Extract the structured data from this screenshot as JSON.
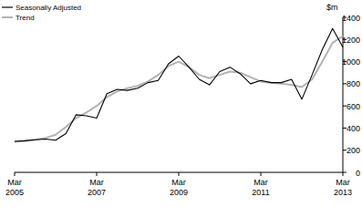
{
  "chart_data": {
    "type": "line",
    "y_label": "$m",
    "categories": [
      "Mar 2005",
      null,
      null,
      null,
      null,
      null,
      null,
      null,
      "Mar 2007",
      null,
      null,
      null,
      null,
      null,
      null,
      null,
      "Mar 2009",
      null,
      null,
      null,
      null,
      null,
      null,
      null,
      "Mar 2011",
      null,
      null,
      null,
      null,
      null,
      null,
      null,
      "Mar 2013"
    ],
    "series": [
      {
        "name": "Seasonally Adjusted",
        "color": "#000000",
        "values": [
          280,
          285,
          295,
          300,
          290,
          350,
          520,
          510,
          490,
          710,
          750,
          740,
          760,
          810,
          830,
          980,
          1050,
          950,
          840,
          790,
          910,
          950,
          890,
          800,
          830,
          810,
          810,
          840,
          660,
          880,
          1110,
          1300,
          1130
        ]
      },
      {
        "name": "Trend",
        "color": "#b3b3b3",
        "values": [
          275,
          285,
          295,
          310,
          340,
          410,
          490,
          540,
          600,
          680,
          730,
          760,
          780,
          820,
          880,
          960,
          1000,
          950,
          880,
          850,
          880,
          910,
          900,
          860,
          820,
          810,
          800,
          790,
          770,
          840,
          1000,
          1170,
          1230
        ]
      }
    ],
    "ylim": [
      0,
      1400
    ],
    "yticks": [
      0,
      200,
      400,
      600,
      800,
      1000,
      1200,
      1400
    ],
    "legend": "top-left",
    "grid": false
  }
}
